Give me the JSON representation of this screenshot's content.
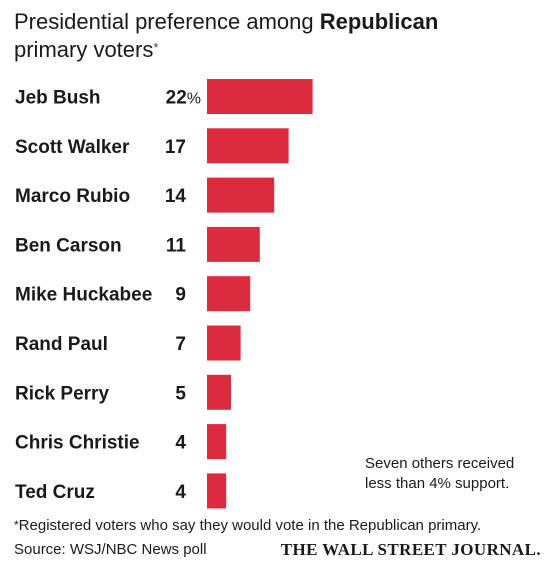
{
  "header": {
    "title_part1": "Presidential preference among ",
    "title_bold": "Republican",
    "title_part2": "primary voters",
    "title_star": "*"
  },
  "chart_data": {
    "type": "bar",
    "orientation": "horizontal",
    "categories": [
      "Jeb Bush",
      "Scott Walker",
      "Marco Rubio",
      "Ben Carson",
      "Mike Huckabee",
      "Rand Paul",
      "Rick Perry",
      "Chris Christie",
      "Ted Cruz"
    ],
    "values": [
      22,
      17,
      14,
      11,
      9,
      7,
      5,
      4,
      4
    ],
    "value_labels": [
      "22%",
      "17",
      "14",
      "11",
      "9",
      "7",
      "5",
      "4",
      "4"
    ],
    "bar_color": "#dc2a3e",
    "xlim": [
      0,
      22
    ],
    "grid": false,
    "legend": "none"
  },
  "annotation": {
    "line1": "Seven others received",
    "line2": "less than 4% support."
  },
  "footer": {
    "footnote_star": "*",
    "footnote": "Registered voters who say they would vote in the Republican primary.",
    "source": "Source: WSJ/NBC News poll",
    "brand": "THE WALL STREET JOURNAL."
  }
}
